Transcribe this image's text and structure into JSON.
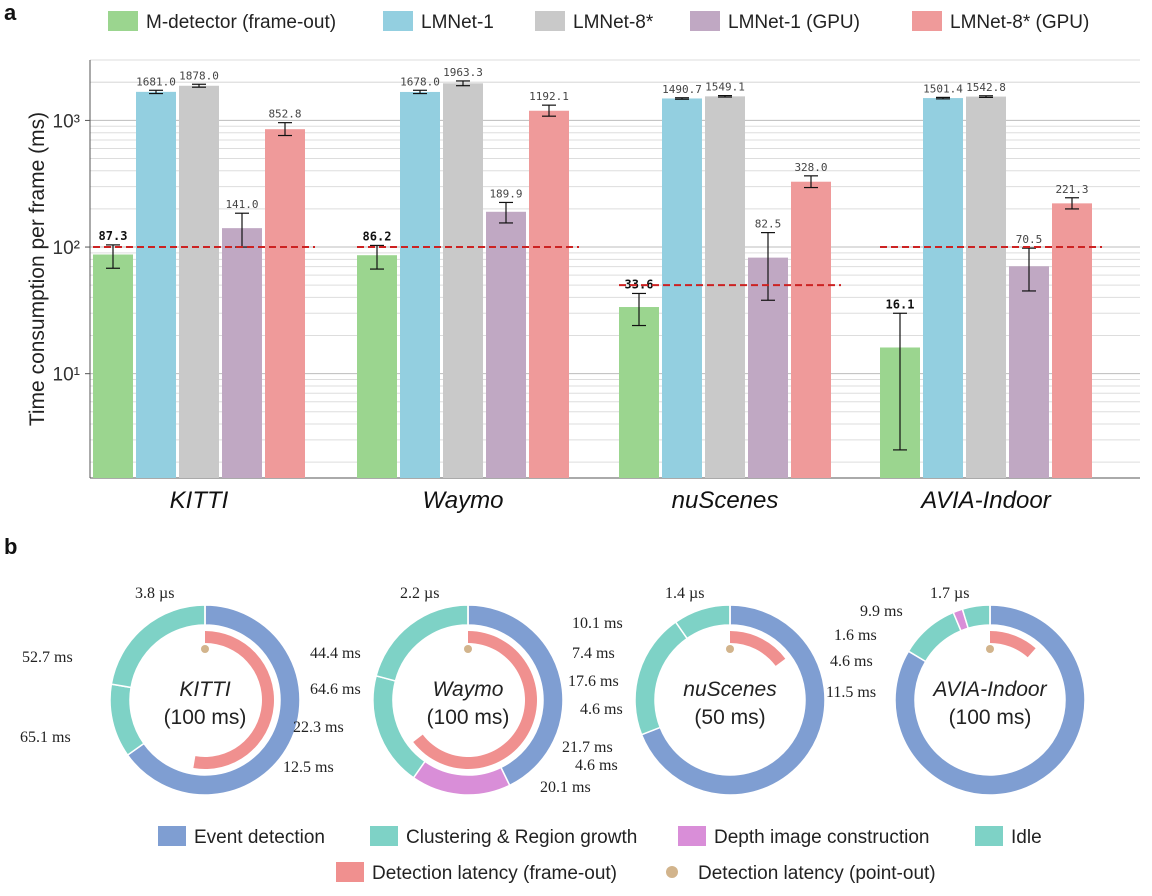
{
  "panel_a_letter": "a",
  "panel_b_letter": "b",
  "chart_data": [
    {
      "type": "bar",
      "yscale": "log",
      "ylim": [
        1.5,
        3000
      ],
      "ylabel": "Time consumption per frame (ms)",
      "yticks": [
        10,
        100,
        1000
      ],
      "ytick_labels": [
        "10¹",
        "10²",
        "10³"
      ],
      "grid": true,
      "categories": [
        "KITTI",
        "Waymo",
        "nuScenes",
        "AVIA-Indoor"
      ],
      "series": [
        {
          "name": "M-detector (frame-out)",
          "color": "#9bd58f",
          "values": [
            87.3,
            86.2,
            33.6,
            16.1
          ],
          "value_labels": [
            "87.3",
            "86.2",
            "33.6",
            "16.1"
          ],
          "err_low": [
            68,
            67,
            24,
            2.5
          ],
          "err_high": [
            104,
            103,
            43,
            30
          ]
        },
        {
          "name": "LMNet-1",
          "color": "#93cfe0",
          "values": [
            1681.0,
            1678.0,
            1490.7,
            1501.4
          ],
          "value_labels": [
            "1681.0",
            "1678.0",
            "1490.7",
            "1501.4"
          ],
          "err_low": [
            1630,
            1630,
            1470,
            1480
          ],
          "err_high": [
            1730,
            1730,
            1510,
            1520
          ]
        },
        {
          "name": "LMNet-8*",
          "color": "#c9c9c9",
          "values": [
            1878.0,
            1963.3,
            1549.1,
            1542.8
          ],
          "value_labels": [
            "1878.0",
            "1963.3",
            "1549.1",
            "1542.8"
          ],
          "err_low": [
            1830,
            1880,
            1530,
            1520
          ],
          "err_high": [
            1930,
            2050,
            1570,
            1565
          ]
        },
        {
          "name": "LMNet-1 (GPU)",
          "color": "#c0a8c3",
          "values": [
            141.0,
            189.9,
            82.5,
            70.5
          ],
          "value_labels": [
            "141.0",
            "189.9",
            "82.5",
            "70.5"
          ],
          "err_low": [
            100,
            155,
            38,
            45
          ],
          "err_high": [
            185,
            225,
            130,
            98
          ]
        },
        {
          "name": "LMNet-8* (GPU)",
          "color": "#ef9a9a",
          "values": [
            852.8,
            1192.1,
            328.0,
            221.3
          ],
          "value_labels": [
            "852.8",
            "1192.1",
            "328.0",
            "221.3"
          ],
          "err_low": [
            760,
            1080,
            295,
            200
          ],
          "err_high": [
            960,
            1320,
            365,
            245
          ]
        }
      ],
      "reference_lines": [
        100,
        100,
        50,
        100
      ],
      "reference_color": "#cc2222"
    },
    {
      "type": "pie",
      "style": "donut",
      "title": "KITTI",
      "subtitle": "(100 ms)",
      "total_ms": 100,
      "outer_ring": [
        {
          "label": "Event detection",
          "value": 65.1,
          "color": "#7f9ed2"
        },
        {
          "label": "Clustering & Region growth",
          "value": 12.5,
          "color": "#7ed2c6"
        },
        {
          "label": "Idle",
          "value": 22.3,
          "color": "#7ed2c6"
        },
        {
          "label": "Detection latency (point-out)",
          "value": 0.0038,
          "color": "#d2b48c"
        }
      ],
      "inner_arc": {
        "label": "Detection latency (frame-out)",
        "value": 52.7,
        "color": "#f0908f"
      },
      "annotations": [
        "3.8 µs",
        "52.7 ms",
        "65.1 ms",
        "22.3 ms",
        "12.5 ms"
      ]
    },
    {
      "type": "pie",
      "style": "donut",
      "title": "Waymo",
      "subtitle": "(100 ms)",
      "total_ms": 100,
      "outer_ring": [
        {
          "label": "Event detection",
          "value": 44.4,
          "color": "#7f9ed2"
        },
        {
          "label": "Depth image construction",
          "value": 17.6,
          "color": "#d98ed8"
        },
        {
          "label": "Clustering & Region growth",
          "value": 20.1,
          "color": "#7ed2c6"
        },
        {
          "label": "Idle",
          "value": 21.7,
          "color": "#7ed2c6"
        },
        {
          "label": "Detection latency (point-out)",
          "value": 0.0022,
          "color": "#d2b48c"
        }
      ],
      "inner_arc": {
        "label": "Detection latency (frame-out)",
        "value": 64.6,
        "color": "#f0908f"
      },
      "annotations": [
        "2.2 µs",
        "44.4 ms",
        "64.6 ms",
        "17.6 ms",
        "21.7 ms",
        "20.1 ms"
      ]
    },
    {
      "type": "pie",
      "style": "donut",
      "title": "nuScenes",
      "subtitle": "(50 ms)",
      "total_ms": 50,
      "outer_ring": [
        {
          "label": "Event detection",
          "value": 32.8,
          "color": "#7f9ed2"
        },
        {
          "label": "Clustering & Region growth",
          "value": 10.1,
          "color": "#7ed2c6"
        },
        {
          "label": "Idle",
          "value": 4.6,
          "color": "#7ed2c6"
        },
        {
          "label": "Detection latency (point-out)",
          "value": 0.0014,
          "color": "#d2b48c"
        }
      ],
      "inner_arc": {
        "label": "Detection latency (frame-out)",
        "value": 7.4,
        "color": "#f0908f"
      },
      "annotations": [
        "1.4 µs",
        "10.1 ms",
        "7.4 ms",
        "4.6 ms",
        "4.6 ms"
      ]
    },
    {
      "type": "pie",
      "style": "donut",
      "title": "AVIA-Indoor",
      "subtitle": "(100 ms)",
      "total_ms": 100,
      "outer_ring": [
        {
          "label": "Event detection",
          "value": 82.0,
          "color": "#7f9ed2"
        },
        {
          "label": "Clustering & Region growth",
          "value": 9.9,
          "color": "#7ed2c6"
        },
        {
          "label": "Depth image construction",
          "value": 1.6,
          "color": "#d98ed8"
        },
        {
          "label": "Idle",
          "value": 4.6,
          "color": "#7ed2c6"
        },
        {
          "label": "Detection latency (point-out)",
          "value": 0.0017,
          "color": "#d2b48c"
        }
      ],
      "inner_arc": {
        "label": "Detection latency (frame-out)",
        "value": 11.5,
        "color": "#f0908f"
      },
      "annotations": [
        "1.7 µs",
        "9.9 ms",
        "1.6 ms",
        "4.6 ms",
        "11.5 ms"
      ]
    }
  ],
  "legend_b": [
    {
      "label": "Event detection",
      "color": "#7f9ed2",
      "shape": "rect"
    },
    {
      "label": "Clustering & Region growth",
      "color": "#7ed2c6",
      "shape": "rect"
    },
    {
      "label": "Depth image construction",
      "color": "#d98ed8",
      "shape": "rect"
    },
    {
      "label": "Idle",
      "color": "#7ed2c6",
      "shape": "rect"
    },
    {
      "label": "Detection latency (frame-out)",
      "color": "#f0908f",
      "shape": "rect"
    },
    {
      "label": "Detection latency (point-out)",
      "color": "#d2b48c",
      "shape": "dot"
    }
  ]
}
